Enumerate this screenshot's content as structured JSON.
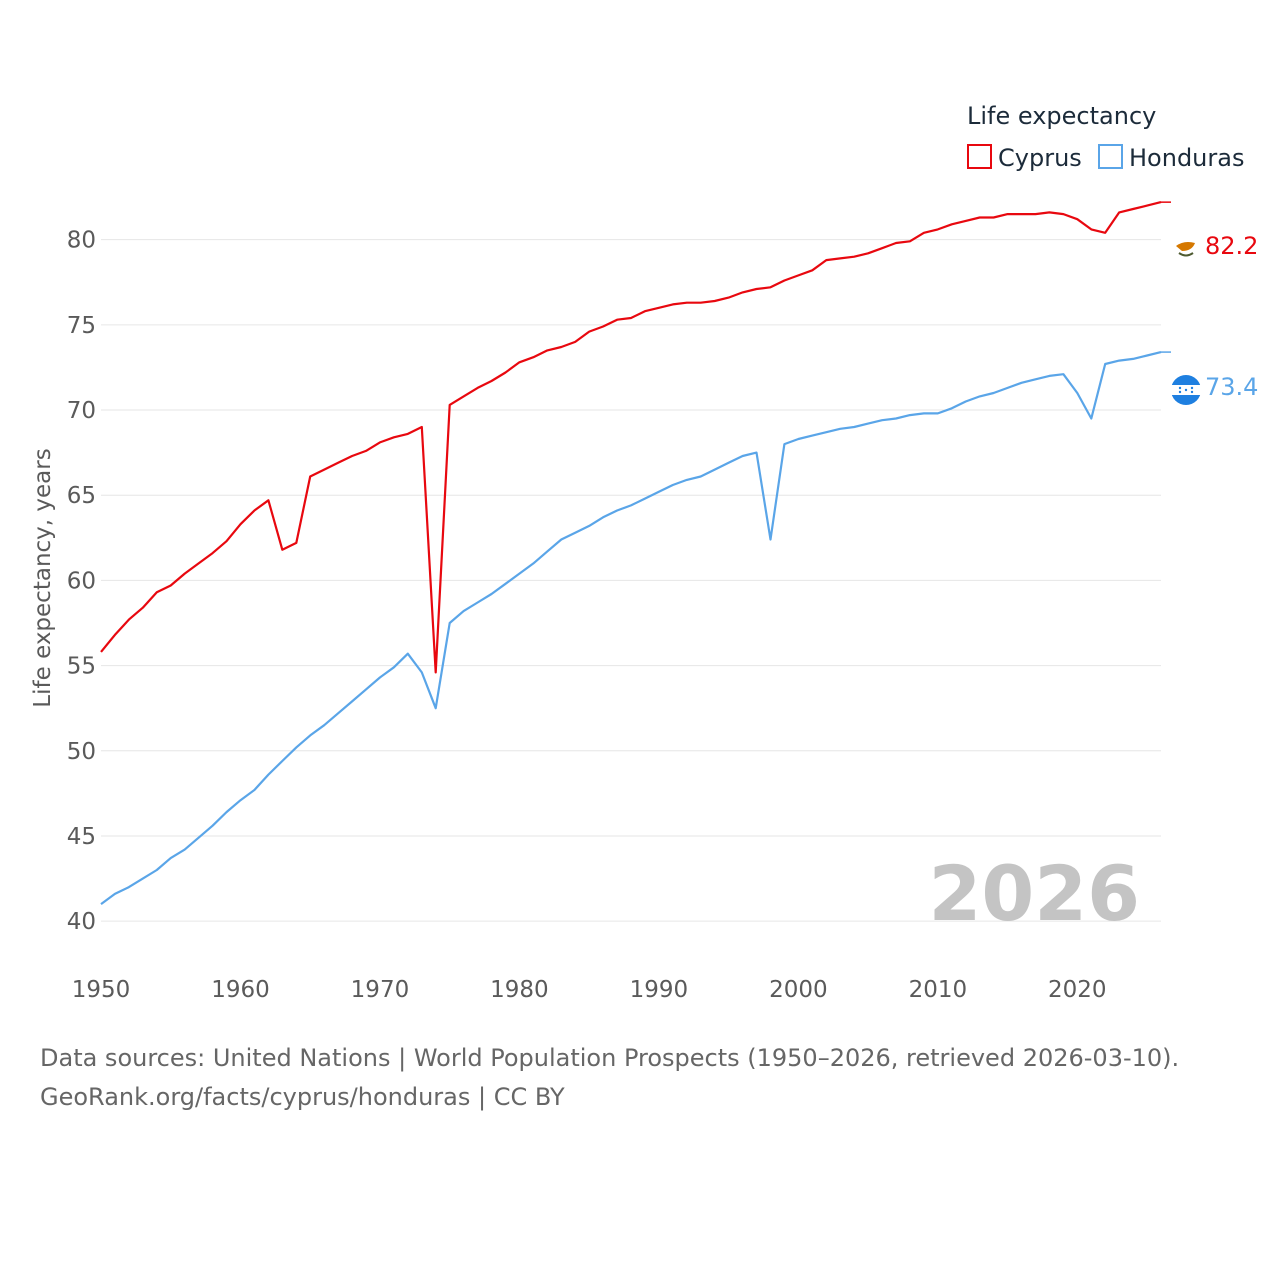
{
  "legend": {
    "title": "Life expectancy",
    "items": [
      {
        "label": "Cyprus",
        "color": "#e8080f"
      },
      {
        "label": "Honduras",
        "color": "#5aa5e8"
      }
    ]
  },
  "watermark_year": "2026",
  "footer": {
    "source": "Data sources: United Nations | World Population Prospects (1950–2026, retrieved 2026-03-10).",
    "credit": "GeoRank.org/facts/cyprus/honduras | CC BY"
  },
  "chart_data": {
    "type": "line",
    "title": "Life expectancy",
    "xlabel": "",
    "ylabel": "Life expectancy, years",
    "xlim": [
      1950,
      2026
    ],
    "ylim": [
      38.6,
      83.5
    ],
    "x_ticks": [
      1950,
      1960,
      1970,
      1980,
      1990,
      2000,
      2010,
      2020
    ],
    "y_ticks": [
      40,
      45,
      50,
      55,
      60,
      65,
      70,
      75,
      80
    ],
    "grid": true,
    "legend_position": "top-right",
    "x": [
      1950,
      1951,
      1952,
      1953,
      1954,
      1955,
      1956,
      1957,
      1958,
      1959,
      1960,
      1961,
      1962,
      1963,
      1964,
      1965,
      1966,
      1967,
      1968,
      1969,
      1970,
      1971,
      1972,
      1973,
      1974,
      1975,
      1976,
      1977,
      1978,
      1979,
      1980,
      1981,
      1982,
      1983,
      1984,
      1985,
      1986,
      1987,
      1988,
      1989,
      1990,
      1991,
      1992,
      1993,
      1994,
      1995,
      1996,
      1997,
      1998,
      1999,
      2000,
      2001,
      2002,
      2003,
      2004,
      2005,
      2006,
      2007,
      2008,
      2009,
      2010,
      2011,
      2012,
      2013,
      2014,
      2015,
      2016,
      2017,
      2018,
      2019,
      2020,
      2021,
      2022,
      2023,
      2024,
      2025,
      2026
    ],
    "series": [
      {
        "name": "Cyprus",
        "color": "#e8080f",
        "end_label": "82.2",
        "values": [
          55.8,
          56.8,
          57.7,
          58.4,
          59.3,
          59.7,
          60.4,
          61.0,
          61.6,
          62.3,
          63.3,
          64.1,
          64.7,
          61.8,
          62.2,
          66.1,
          66.5,
          66.9,
          67.3,
          67.6,
          68.1,
          68.4,
          68.6,
          69.0,
          54.6,
          70.3,
          70.8,
          71.3,
          71.7,
          72.2,
          72.8,
          73.1,
          73.5,
          73.7,
          74.0,
          74.6,
          74.9,
          75.3,
          75.4,
          75.8,
          76.0,
          76.2,
          76.3,
          76.3,
          76.4,
          76.6,
          76.9,
          77.1,
          77.2,
          77.6,
          77.9,
          78.2,
          78.8,
          78.9,
          79.0,
          79.2,
          79.5,
          79.8,
          79.9,
          80.4,
          80.6,
          80.9,
          81.1,
          81.3,
          81.3,
          81.5,
          81.5,
          81.5,
          81.6,
          81.5,
          81.2,
          80.6,
          80.4,
          81.6,
          81.8,
          82.0,
          82.2
        ]
      },
      {
        "name": "Honduras",
        "color": "#5aa5e8",
        "end_label": "73.4",
        "values": [
          41.0,
          41.6,
          42.0,
          42.5,
          43.0,
          43.7,
          44.2,
          44.9,
          45.6,
          46.4,
          47.1,
          47.7,
          48.6,
          49.4,
          50.2,
          50.9,
          51.5,
          52.2,
          52.9,
          53.6,
          54.3,
          54.9,
          55.7,
          54.6,
          52.5,
          57.5,
          58.2,
          58.7,
          59.2,
          59.8,
          60.4,
          61.0,
          61.7,
          62.4,
          62.8,
          63.2,
          63.7,
          64.1,
          64.4,
          64.8,
          65.2,
          65.6,
          65.9,
          66.1,
          66.5,
          66.9,
          67.3,
          67.5,
          62.4,
          68.0,
          68.3,
          68.5,
          68.7,
          68.9,
          69.0,
          69.2,
          69.4,
          69.5,
          69.7,
          69.8,
          69.8,
          70.1,
          70.5,
          70.8,
          71.0,
          71.3,
          71.6,
          71.8,
          72.0,
          72.1,
          71.0,
          69.5,
          72.7,
          72.9,
          73.0,
          73.2,
          73.4
        ]
      }
    ]
  }
}
